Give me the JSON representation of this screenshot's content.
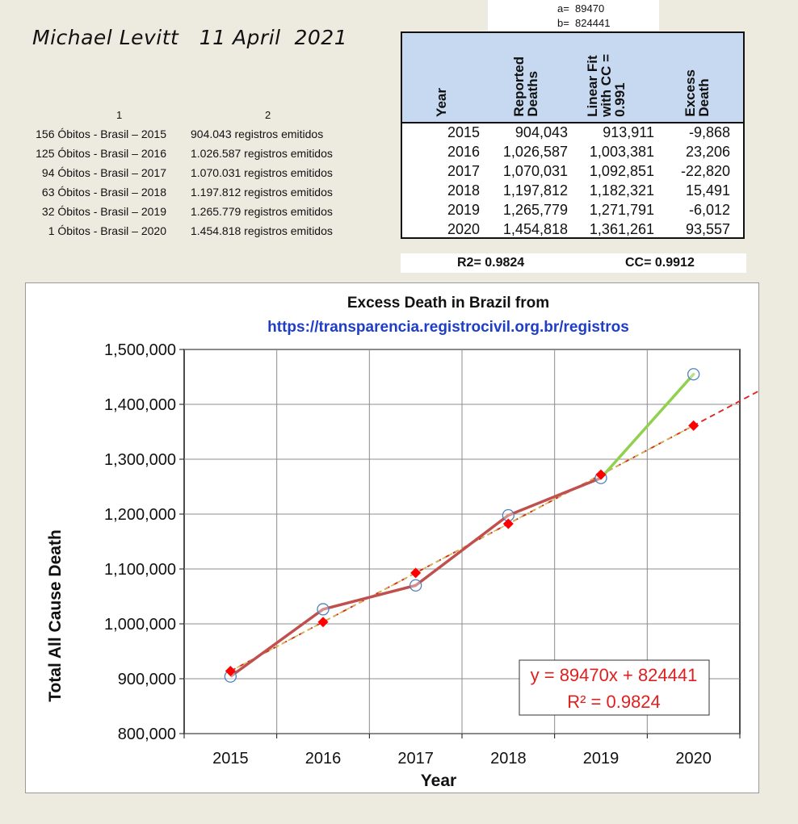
{
  "author_note": "Michael Levitt   11 April  2021",
  "fit_params": {
    "a": "a=  89470",
    "b": "b=  824441"
  },
  "source_list": {
    "col1_header": "1",
    "col2_header": "2",
    "rows": [
      {
        "idx": "156 Óbitos - Brasil – 2015",
        "text": "904.043 registros emitidos"
      },
      {
        "idx": "125 Óbitos - Brasil – 2016",
        "text": "1.026.587 registros emitidos"
      },
      {
        "idx": "94 Óbitos - Brasil – 2017",
        "text": "1.070.031 registros emitidos"
      },
      {
        "idx": "63 Óbitos - Brasil – 2018",
        "text": "1.197.812 registros emitidos"
      },
      {
        "idx": "32 Óbitos - Brasil – 2019",
        "text": "1.265.779 registros emitidos"
      },
      {
        "idx": "1 Óbitos - Brasil – 2020",
        "text": "1.454.818 registros emitidos"
      }
    ]
  },
  "table": {
    "headers": [
      "Year",
      "Reported\nDeaths",
      "Linear Fit\nwith CC =\n0.991",
      "Excess\nDeath"
    ],
    "rows": [
      [
        "2015",
        "904,043",
        "913,911",
        "-9,868"
      ],
      [
        "2016",
        "1,026,587",
        "1,003,381",
        "23,206"
      ],
      [
        "2017",
        "1,070,031",
        "1,092,851",
        "-22,820"
      ],
      [
        "2018",
        "1,197,812",
        "1,182,321",
        "15,491"
      ],
      [
        "2019",
        "1,265,779",
        "1,271,791",
        "-6,012"
      ],
      [
        "2020",
        "1,454,818",
        "1,361,261",
        "93,557"
      ]
    ]
  },
  "stats": {
    "r2": "R2= 0.9824",
    "cc": "CC= 0.9912"
  },
  "chart_data": {
    "type": "line",
    "title": "Excess Death in Brazil from",
    "subtitle": "https://transparencia.registrocivil.org.br/registros",
    "xlabel": "Year",
    "ylabel": "Total All Cause Death",
    "categories": [
      "2015",
      "2016",
      "2017",
      "2018",
      "2019",
      "2020"
    ],
    "x": [
      2015,
      2016,
      2017,
      2018,
      2019,
      2020
    ],
    "xlim": [
      2014.5,
      2020.5
    ],
    "ylim": [
      800000,
      1500000
    ],
    "yticks": [
      800000,
      900000,
      1000000,
      1100000,
      1200000,
      1300000,
      1400000,
      1500000
    ],
    "ytick_labels": [
      "800,000",
      "900,000",
      "1,000,000",
      "1,100,000",
      "1,200,000",
      "1,300,000",
      "1,400,000",
      "1,500,000"
    ],
    "grid": true,
    "series": [
      {
        "values": [
          904043,
          1026587,
          1070031,
          1197812,
          1265779,
          1454818
        ],
        "color": "#c0504d",
        "marker": "open-circle",
        "highlight_last_segment_color": "#92d050"
      },
      {
        "values": [
          913911,
          1003381,
          1092851,
          1182321,
          1271791,
          1361261
        ],
        "color": "#ff0000",
        "marker": "diamond"
      }
    ],
    "trendline": {
      "slope": 89470,
      "intercept": 824441,
      "x_start": 1,
      "x_end": 6.9,
      "color": "#e02020",
      "style": "dashed"
    },
    "equation": {
      "line1": "y = 89470x + 824441",
      "line2": "R² = 0.9824",
      "color": "#e02020"
    },
    "colors": {
      "reported_line": "#c0504d",
      "excess_segment": "#92d050",
      "fit_marker": "#ff0000",
      "circle_marker": "#4f81bd",
      "url_color": "#1f3ec8"
    }
  }
}
